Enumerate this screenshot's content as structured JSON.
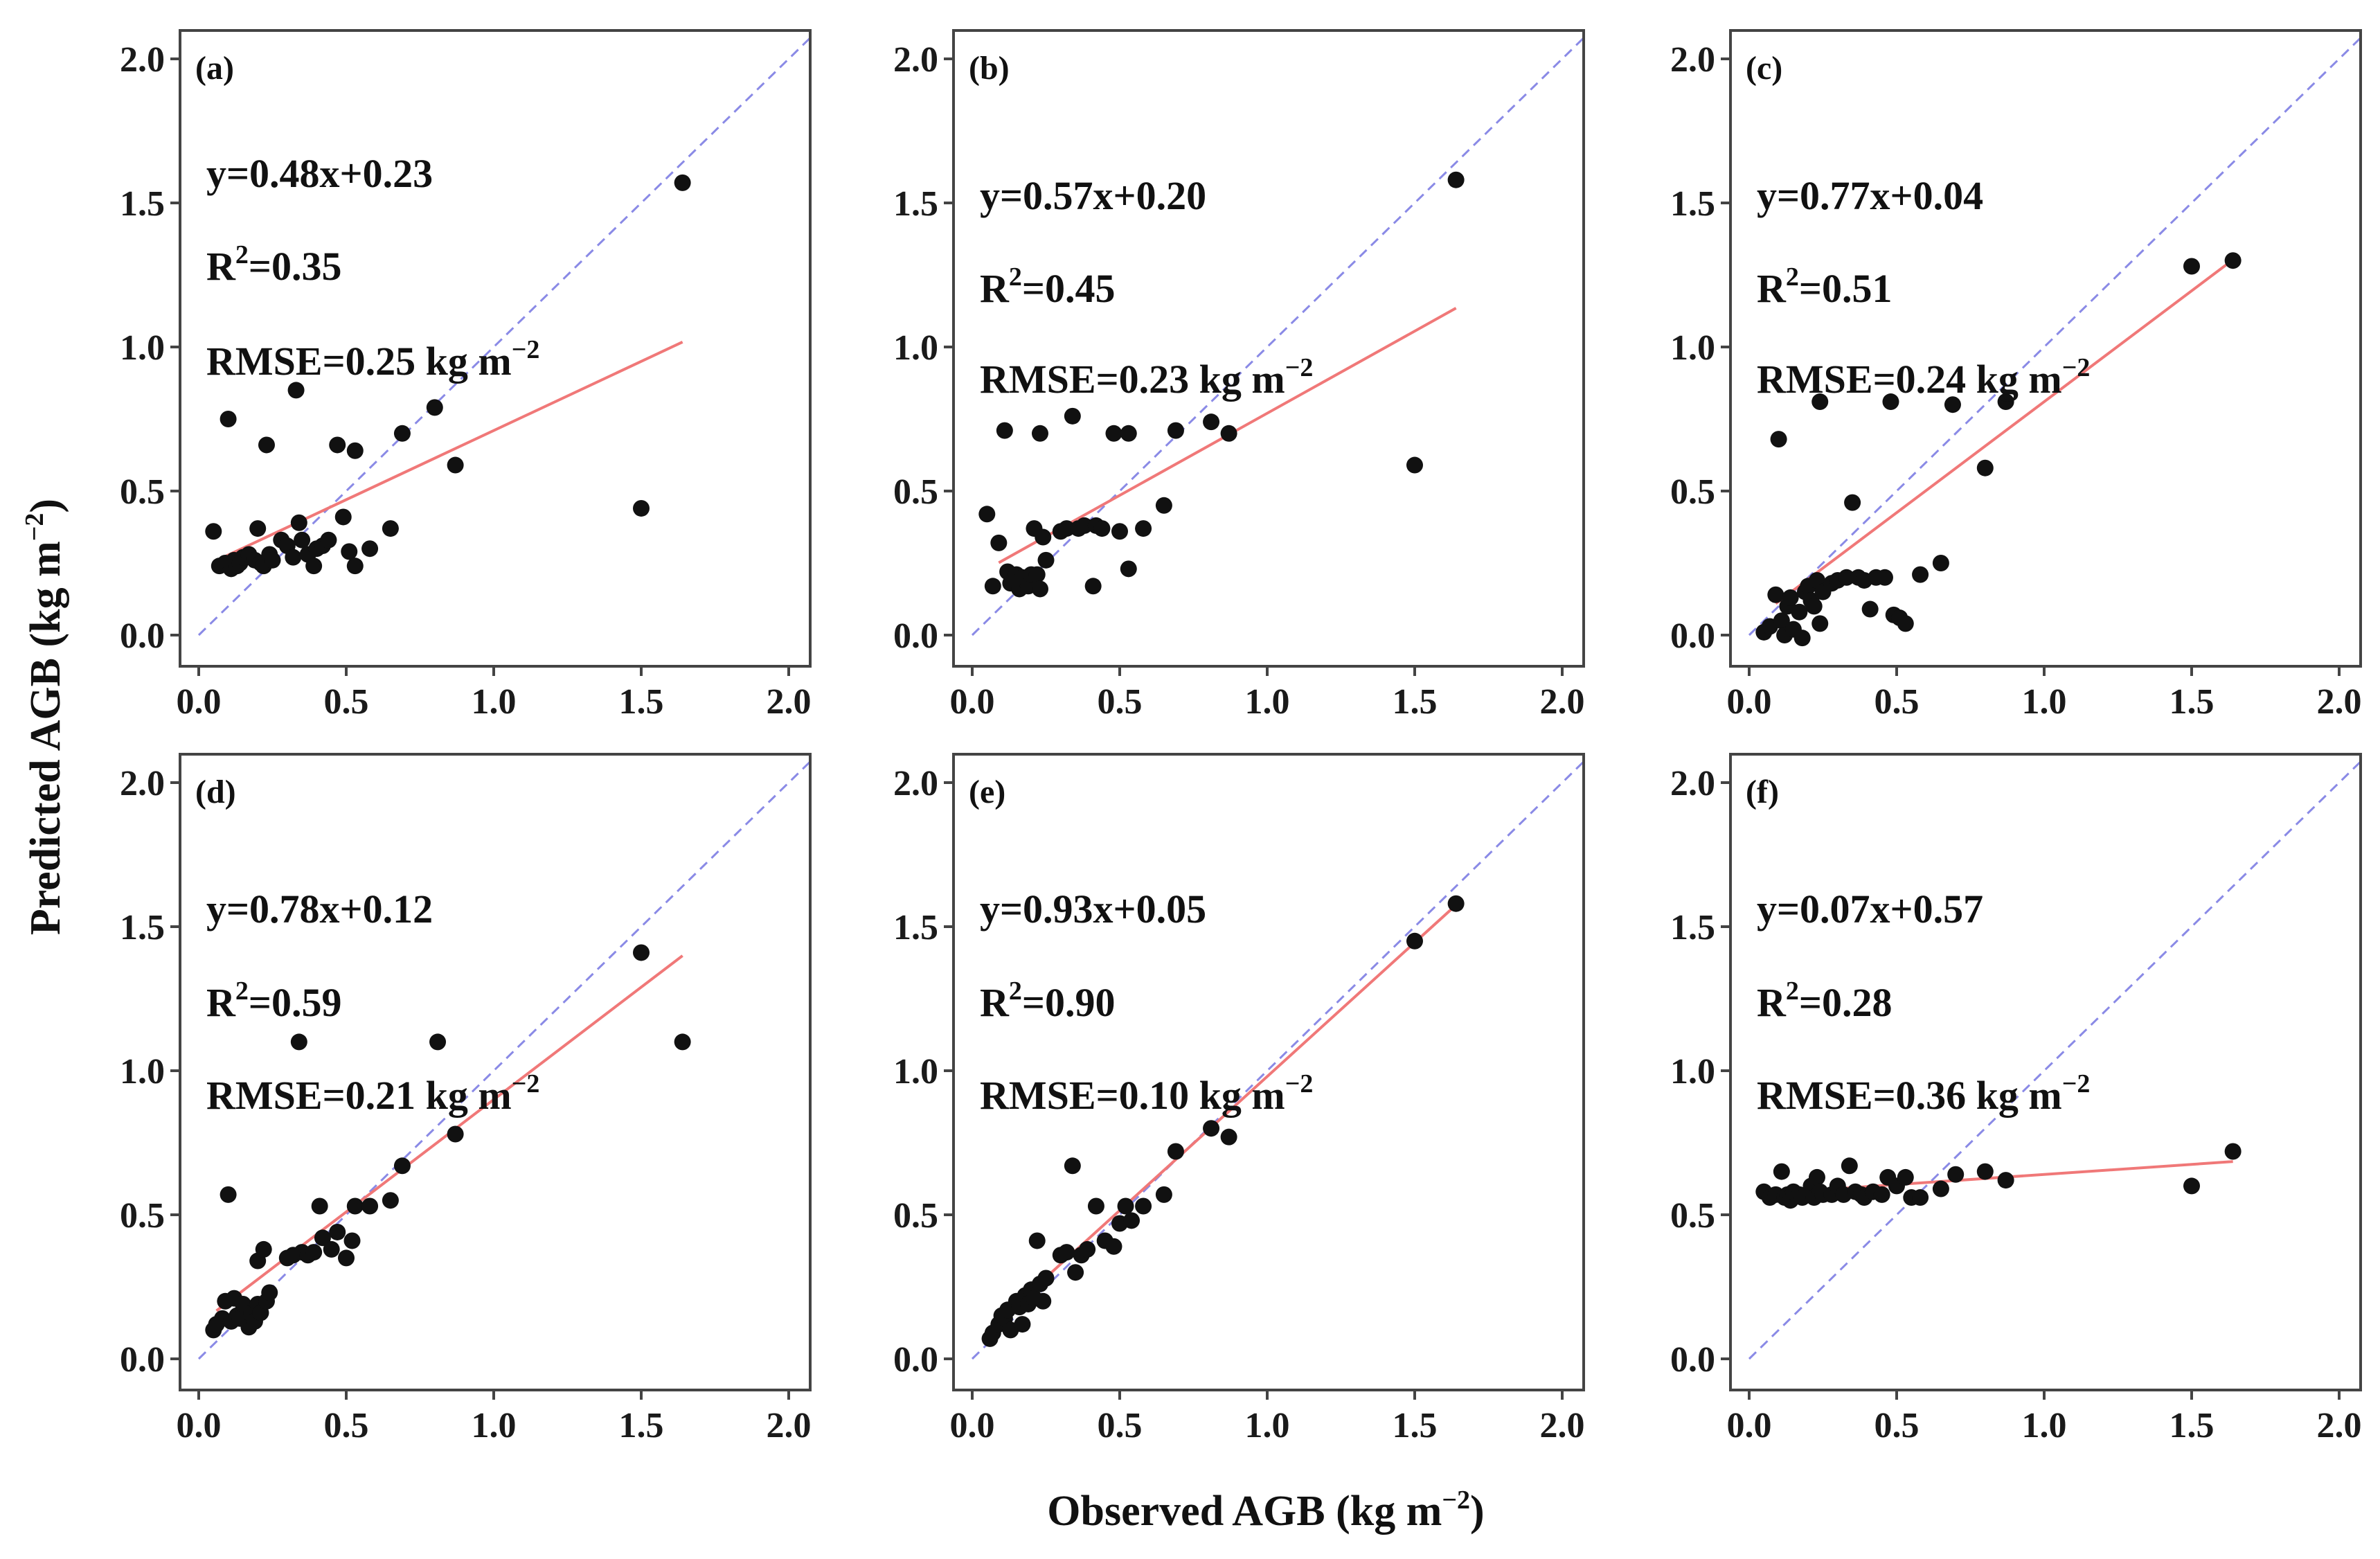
{
  "figure": {
    "xlabel_main": "Observed AGB (kg m",
    "xlabel_sup": "−2",
    "xlabel_end": ")",
    "ylabel_main": "Predicted AGB (kg m",
    "ylabel_sup": "−2",
    "ylabel_end": ")"
  },
  "chart_data": [
    {
      "type": "scatter",
      "label": "(a)",
      "equation": "y=0.48x+0.23",
      "r2_prefix": "R",
      "r2_sup": "2",
      "r2_value": "=0.35",
      "rmse": "RMSE=0.25 kg m",
      "rmse_sup": "−2",
      "fit": {
        "slope": 0.48,
        "intercept": 0.23,
        "x_range": [
          0.09,
          1.64
        ]
      },
      "xlim": [
        0,
        2.0
      ],
      "ylim": [
        0,
        2.0
      ],
      "xticks": [
        "0.0",
        "0.5",
        "1.0",
        "1.5",
        "2.0"
      ],
      "yticks": [
        "0.0",
        "0.5",
        "1.0",
        "1.5",
        "2.0"
      ],
      "points": [
        [
          0.05,
          0.36
        ],
        [
          0.07,
          0.24
        ],
        [
          0.09,
          0.25
        ],
        [
          0.1,
          0.75
        ],
        [
          0.11,
          0.23
        ],
        [
          0.12,
          0.26
        ],
        [
          0.13,
          0.24
        ],
        [
          0.14,
          0.25
        ],
        [
          0.15,
          0.27
        ],
        [
          0.17,
          0.28
        ],
        [
          0.19,
          0.26
        ],
        [
          0.2,
          0.37
        ],
        [
          0.21,
          0.25
        ],
        [
          0.22,
          0.24
        ],
        [
          0.23,
          0.66
        ],
        [
          0.24,
          0.28
        ],
        [
          0.25,
          0.26
        ],
        [
          0.28,
          0.33
        ],
        [
          0.3,
          0.31
        ],
        [
          0.32,
          0.27
        ],
        [
          0.33,
          0.85
        ],
        [
          0.34,
          0.39
        ],
        [
          0.35,
          0.33
        ],
        [
          0.37,
          0.28
        ],
        [
          0.39,
          0.24
        ],
        [
          0.4,
          0.3
        ],
        [
          0.42,
          0.31
        ],
        [
          0.44,
          0.33
        ],
        [
          0.47,
          0.66
        ],
        [
          0.49,
          0.41
        ],
        [
          0.51,
          0.29
        ],
        [
          0.53,
          0.64
        ],
        [
          0.53,
          0.24
        ],
        [
          0.58,
          0.3
        ],
        [
          0.65,
          0.37
        ],
        [
          0.69,
          0.7
        ],
        [
          0.8,
          0.79
        ],
        [
          0.87,
          0.59
        ],
        [
          1.5,
          0.44
        ],
        [
          1.64,
          1.57
        ]
      ]
    },
    {
      "type": "scatter",
      "label": "(b)",
      "equation": "y=0.57x+0.20",
      "r2_prefix": "R",
      "r2_sup": "2",
      "r2_value": "=0.45",
      "rmse": "RMSE=0.23 kg m",
      "rmse_sup": "−2",
      "fit": {
        "slope": 0.57,
        "intercept": 0.2,
        "x_range": [
          0.09,
          1.64
        ]
      },
      "xlim": [
        0,
        2.0
      ],
      "ylim": [
        0,
        2.0
      ],
      "xticks": [
        "0.0",
        "0.5",
        "1.0",
        "1.5",
        "2.0"
      ],
      "yticks": [
        "0.0",
        "0.5",
        "1.0",
        "1.5",
        "2.0"
      ],
      "points": [
        [
          0.05,
          0.42
        ],
        [
          0.07,
          0.17
        ],
        [
          0.09,
          0.32
        ],
        [
          0.11,
          0.71
        ],
        [
          0.12,
          0.22
        ],
        [
          0.13,
          0.18
        ],
        [
          0.15,
          0.21
        ],
        [
          0.16,
          0.16
        ],
        [
          0.17,
          0.2
        ],
        [
          0.19,
          0.17
        ],
        [
          0.2,
          0.21
        ],
        [
          0.21,
          0.37
        ],
        [
          0.22,
          0.21
        ],
        [
          0.23,
          0.7
        ],
        [
          0.23,
          0.16
        ],
        [
          0.24,
          0.34
        ],
        [
          0.25,
          0.26
        ],
        [
          0.3,
          0.36
        ],
        [
          0.32,
          0.37
        ],
        [
          0.34,
          0.76
        ],
        [
          0.36,
          0.37
        ],
        [
          0.38,
          0.38
        ],
        [
          0.41,
          0.17
        ],
        [
          0.42,
          0.38
        ],
        [
          0.44,
          0.37
        ],
        [
          0.48,
          0.7
        ],
        [
          0.5,
          0.36
        ],
        [
          0.53,
          0.7
        ],
        [
          0.53,
          0.23
        ],
        [
          0.58,
          0.37
        ],
        [
          0.65,
          0.45
        ],
        [
          0.69,
          0.71
        ],
        [
          0.81,
          0.74
        ],
        [
          0.87,
          0.7
        ],
        [
          1.5,
          0.59
        ],
        [
          1.64,
          1.58
        ]
      ]
    },
    {
      "type": "scatter",
      "label": "(c)",
      "equation": "y=0.77x+0.04",
      "r2_prefix": "R",
      "r2_sup": "2",
      "r2_value": "=0.51",
      "rmse": "RMSE=0.24 kg m",
      "rmse_sup": "−2",
      "fit": {
        "slope": 0.77,
        "intercept": 0.04,
        "x_range": [
          0.09,
          1.64
        ]
      },
      "xlim": [
        0,
        2.0
      ],
      "ylim": [
        0,
        2.0
      ],
      "xticks": [
        "0.0",
        "0.5",
        "1.0",
        "1.5",
        "2.0"
      ],
      "yticks": [
        "0.0",
        "0.5",
        "1.0",
        "1.5",
        "2.0"
      ],
      "points": [
        [
          0.05,
          0.01
        ],
        [
          0.07,
          0.03
        ],
        [
          0.09,
          0.14
        ],
        [
          0.1,
          0.68
        ],
        [
          0.11,
          0.05
        ],
        [
          0.12,
          0.0
        ],
        [
          0.13,
          0.1
        ],
        [
          0.14,
          0.13
        ],
        [
          0.15,
          0.02
        ],
        [
          0.17,
          0.08
        ],
        [
          0.18,
          -0.01
        ],
        [
          0.19,
          0.15
        ],
        [
          0.2,
          0.17
        ],
        [
          0.21,
          0.12
        ],
        [
          0.22,
          0.1
        ],
        [
          0.23,
          0.19
        ],
        [
          0.24,
          0.81
        ],
        [
          0.24,
          0.04
        ],
        [
          0.25,
          0.15
        ],
        [
          0.28,
          0.18
        ],
        [
          0.3,
          0.19
        ],
        [
          0.33,
          0.2
        ],
        [
          0.35,
          0.46
        ],
        [
          0.37,
          0.2
        ],
        [
          0.39,
          0.19
        ],
        [
          0.41,
          0.09
        ],
        [
          0.43,
          0.2
        ],
        [
          0.46,
          0.2
        ],
        [
          0.48,
          0.81
        ],
        [
          0.49,
          0.07
        ],
        [
          0.51,
          0.06
        ],
        [
          0.53,
          0.04
        ],
        [
          0.58,
          0.21
        ],
        [
          0.65,
          0.25
        ],
        [
          0.69,
          0.8
        ],
        [
          0.8,
          0.58
        ],
        [
          0.87,
          0.81
        ],
        [
          1.5,
          1.28
        ],
        [
          1.64,
          1.3
        ]
      ]
    },
    {
      "type": "scatter",
      "label": "(d)",
      "equation": "y=0.78x+0.12",
      "r2_prefix": "R",
      "r2_sup": "2",
      "r2_value": "=0.59",
      "rmse": "RMSE=0.21 kg m",
      "rmse_sup": "−2",
      "fit": {
        "slope": 0.78,
        "intercept": 0.12,
        "x_range": [
          0.06,
          1.64
        ]
      },
      "xlim": [
        0,
        2.0
      ],
      "ylim": [
        0,
        2.0
      ],
      "xticks": [
        "0.0",
        "0.5",
        "1.0",
        "1.5",
        "2.0"
      ],
      "yticks": [
        "0.0",
        "0.5",
        "1.0",
        "1.5",
        "2.0"
      ],
      "points": [
        [
          0.05,
          0.1
        ],
        [
          0.06,
          0.12
        ],
        [
          0.08,
          0.14
        ],
        [
          0.09,
          0.2
        ],
        [
          0.1,
          0.57
        ],
        [
          0.11,
          0.13
        ],
        [
          0.12,
          0.21
        ],
        [
          0.13,
          0.15
        ],
        [
          0.14,
          0.14
        ],
        [
          0.15,
          0.19
        ],
        [
          0.17,
          0.11
        ],
        [
          0.18,
          0.16
        ],
        [
          0.19,
          0.13
        ],
        [
          0.2,
          0.34
        ],
        [
          0.2,
          0.19
        ],
        [
          0.21,
          0.16
        ],
        [
          0.22,
          0.38
        ],
        [
          0.23,
          0.2
        ],
        [
          0.24,
          0.23
        ],
        [
          0.3,
          0.35
        ],
        [
          0.32,
          0.36
        ],
        [
          0.34,
          1.1
        ],
        [
          0.35,
          0.37
        ],
        [
          0.37,
          0.36
        ],
        [
          0.39,
          0.37
        ],
        [
          0.41,
          0.53
        ],
        [
          0.42,
          0.42
        ],
        [
          0.45,
          0.38
        ],
        [
          0.47,
          0.44
        ],
        [
          0.5,
          0.35
        ],
        [
          0.52,
          0.41
        ],
        [
          0.53,
          0.53
        ],
        [
          0.58,
          0.53
        ],
        [
          0.65,
          0.55
        ],
        [
          0.69,
          0.67
        ],
        [
          0.81,
          1.1
        ],
        [
          0.87,
          0.78
        ],
        [
          1.5,
          1.41
        ],
        [
          1.64,
          1.1
        ]
      ]
    },
    {
      "type": "scatter",
      "label": "(e)",
      "equation": "y=0.93x+0.05",
      "r2_prefix": "R",
      "r2_sup": "2",
      "r2_value": "=0.90",
      "rmse": "RMSE=0.10 kg m",
      "rmse_sup": "−2",
      "fit": {
        "slope": 0.93,
        "intercept": 0.05,
        "x_range": [
          0.06,
          1.64
        ]
      },
      "xlim": [
        0,
        2.0
      ],
      "ylim": [
        0,
        2.0
      ],
      "xticks": [
        "0.0",
        "0.5",
        "1.0",
        "1.5",
        "2.0"
      ],
      "yticks": [
        "0.0",
        "0.5",
        "1.0",
        "1.5",
        "2.0"
      ],
      "points": [
        [
          0.06,
          0.07
        ],
        [
          0.07,
          0.09
        ],
        [
          0.09,
          0.12
        ],
        [
          0.1,
          0.15
        ],
        [
          0.11,
          0.14
        ],
        [
          0.12,
          0.17
        ],
        [
          0.13,
          0.1
        ],
        [
          0.15,
          0.2
        ],
        [
          0.16,
          0.18
        ],
        [
          0.17,
          0.12
        ],
        [
          0.18,
          0.22
        ],
        [
          0.19,
          0.19
        ],
        [
          0.2,
          0.24
        ],
        [
          0.21,
          0.21
        ],
        [
          0.22,
          0.41
        ],
        [
          0.23,
          0.26
        ],
        [
          0.24,
          0.2
        ],
        [
          0.25,
          0.28
        ],
        [
          0.3,
          0.36
        ],
        [
          0.32,
          0.37
        ],
        [
          0.34,
          0.67
        ],
        [
          0.35,
          0.3
        ],
        [
          0.37,
          0.36
        ],
        [
          0.39,
          0.38
        ],
        [
          0.42,
          0.53
        ],
        [
          0.45,
          0.41
        ],
        [
          0.48,
          0.39
        ],
        [
          0.5,
          0.47
        ],
        [
          0.52,
          0.53
        ],
        [
          0.54,
          0.48
        ],
        [
          0.58,
          0.53
        ],
        [
          0.65,
          0.57
        ],
        [
          0.69,
          0.72
        ],
        [
          0.81,
          0.8
        ],
        [
          0.87,
          0.77
        ],
        [
          1.5,
          1.45
        ],
        [
          1.64,
          1.58
        ]
      ]
    },
    {
      "type": "scatter",
      "label": "(f)",
      "equation": "y=0.07x+0.57",
      "r2_prefix": "R",
      "r2_sup": "2",
      "r2_value": "=0.28",
      "rmse": "RMSE=0.36 kg m",
      "rmse_sup": "−2",
      "fit": {
        "slope": 0.07,
        "intercept": 0.57,
        "x_range": [
          0.06,
          1.64
        ]
      },
      "xlim": [
        0,
        2.0
      ],
      "ylim": [
        0,
        2.0
      ],
      "xticks": [
        "0.0",
        "0.5",
        "1.0",
        "1.5",
        "2.0"
      ],
      "yticks": [
        "0.0",
        "0.5",
        "1.0",
        "1.5",
        "2.0"
      ],
      "points": [
        [
          0.05,
          0.58
        ],
        [
          0.07,
          0.56
        ],
        [
          0.09,
          0.57
        ],
        [
          0.11,
          0.65
        ],
        [
          0.12,
          0.56
        ],
        [
          0.13,
          0.57
        ],
        [
          0.14,
          0.55
        ],
        [
          0.15,
          0.58
        ],
        [
          0.17,
          0.57
        ],
        [
          0.18,
          0.56
        ],
        [
          0.2,
          0.57
        ],
        [
          0.21,
          0.6
        ],
        [
          0.22,
          0.56
        ],
        [
          0.23,
          0.63
        ],
        [
          0.24,
          0.58
        ],
        [
          0.25,
          0.57
        ],
        [
          0.28,
          0.57
        ],
        [
          0.3,
          0.6
        ],
        [
          0.32,
          0.57
        ],
        [
          0.34,
          0.67
        ],
        [
          0.36,
          0.58
        ],
        [
          0.38,
          0.57
        ],
        [
          0.39,
          0.56
        ],
        [
          0.42,
          0.58
        ],
        [
          0.45,
          0.57
        ],
        [
          0.47,
          0.63
        ],
        [
          0.5,
          0.6
        ],
        [
          0.53,
          0.63
        ],
        [
          0.55,
          0.56
        ],
        [
          0.58,
          0.56
        ],
        [
          0.65,
          0.59
        ],
        [
          0.7,
          0.64
        ],
        [
          0.8,
          0.65
        ],
        [
          0.87,
          0.62
        ],
        [
          1.5,
          0.6
        ],
        [
          1.64,
          0.72
        ]
      ]
    }
  ]
}
